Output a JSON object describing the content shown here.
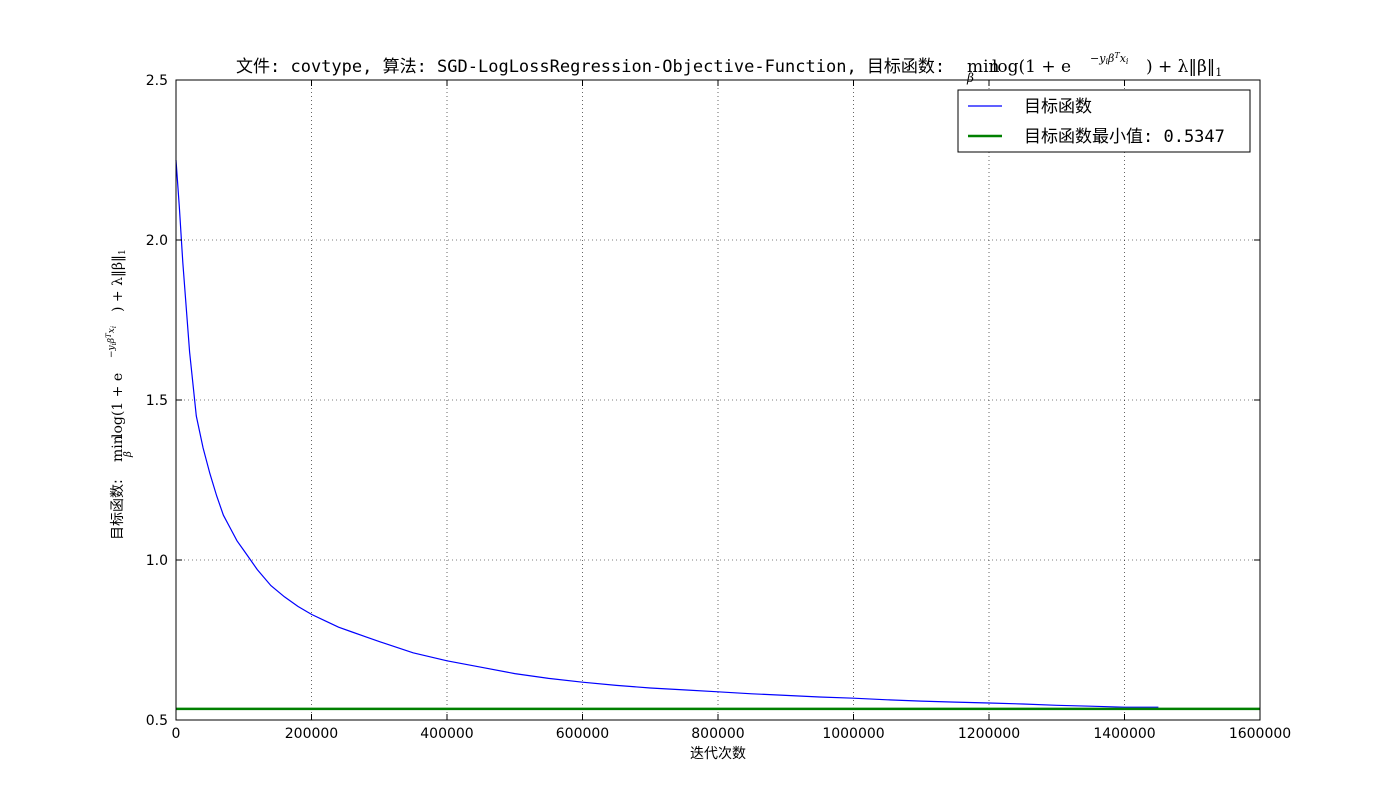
{
  "chart_data": {
    "type": "line",
    "title_prefix": "文件: covtype, 算法: SGD-LogLossRegression-Objective-Function, 目标函数:",
    "title_math": {
      "min": "min",
      "sub": "β",
      "expr_a": "log(1 + e",
      "sup": "−y",
      "sup_sub_i": "i",
      "sup_beta": "β",
      "sup_T": "T",
      "sup_x": "x",
      "sup_x_i": "i",
      "expr_b": ") + λ‖β‖",
      "expr_sub_1": "1"
    },
    "xlabel": "迭代次数",
    "ylabel_prefix": "目标函数:",
    "xlim": [
      0,
      1600000
    ],
    "ylim": [
      0.5,
      2.5
    ],
    "xticks": [
      0,
      200000,
      400000,
      600000,
      800000,
      1000000,
      1200000,
      1400000,
      1600000
    ],
    "xtick_labels": [
      "0",
      "200000",
      "400000",
      "600000",
      "800000",
      "1000000",
      "1200000",
      "1400000",
      "1600000"
    ],
    "yticks": [
      0.5,
      1.0,
      1.5,
      2.0,
      2.5
    ],
    "ytick_labels": [
      "0.5",
      "1.0",
      "1.5",
      "2.0",
      "2.5"
    ],
    "grid": true,
    "legend_position": "top-right",
    "series": [
      {
        "name": "目标函数",
        "color": "#0000ff",
        "x": [
          0,
          5000,
          10000,
          20000,
          30000,
          40000,
          50000,
          60000,
          70000,
          80000,
          90000,
          100000,
          120000,
          140000,
          160000,
          180000,
          200000,
          220000,
          240000,
          260000,
          280000,
          300000,
          350000,
          400000,
          450000,
          500000,
          550000,
          600000,
          650000,
          700000,
          750000,
          800000,
          850000,
          900000,
          950000,
          1000000,
          1050000,
          1100000,
          1150000,
          1200000,
          1250000,
          1300000,
          1350000,
          1400000,
          1450000
        ],
        "y": [
          2.25,
          2.1,
          1.93,
          1.65,
          1.45,
          1.35,
          1.27,
          1.2,
          1.14,
          1.1,
          1.06,
          1.03,
          0.97,
          0.92,
          0.885,
          0.855,
          0.83,
          0.81,
          0.79,
          0.775,
          0.76,
          0.745,
          0.71,
          0.685,
          0.665,
          0.645,
          0.63,
          0.618,
          0.608,
          0.6,
          0.594,
          0.588,
          0.582,
          0.577,
          0.572,
          0.568,
          0.563,
          0.559,
          0.556,
          0.553,
          0.55,
          0.546,
          0.543,
          0.54,
          0.54
        ]
      },
      {
        "name": "目标函数最小值: 0.5347",
        "color": "#008000",
        "x": [
          0,
          1600000
        ],
        "y": [
          0.5347,
          0.5347
        ]
      }
    ]
  }
}
